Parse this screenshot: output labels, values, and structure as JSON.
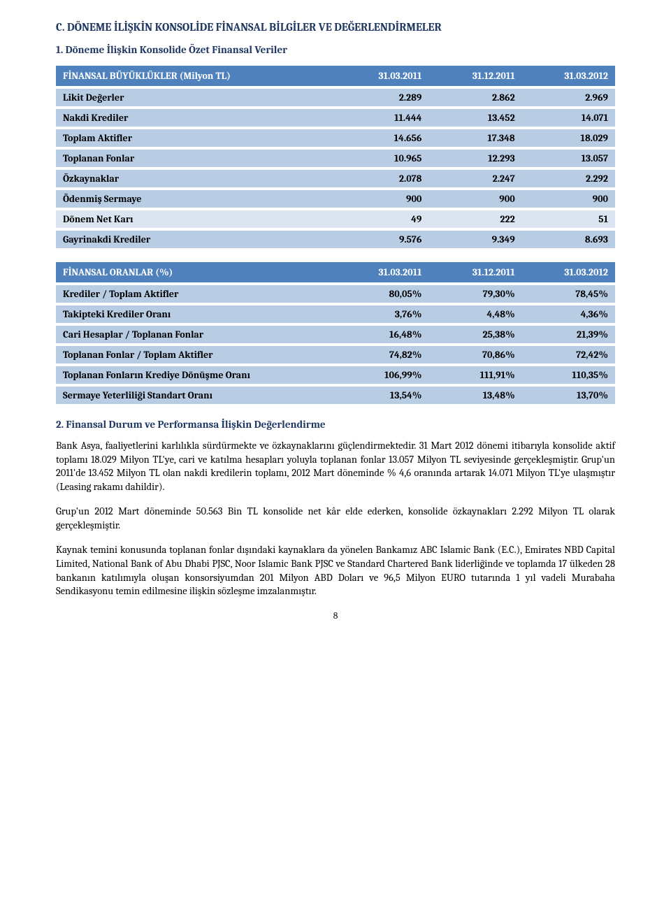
{
  "section_heading": "C.    DÖNEME İLİŞKİN KONSOLİDE FİNANSAL BİLGİLER VE DEĞERLENDİRMELER",
  "sub_heading": "1.    Döneme İlişkin Konsolide Özet Finansal Veriler",
  "table1": {
    "header_label": "FİNANSAL BÜYÜKLÜKLER (Milyon TL)",
    "col1": "31.03.2011",
    "col2": "31.12.2011",
    "col3": "31.03.2012",
    "rows": [
      {
        "label": "Likit Değerler",
        "v1": "2.289",
        "v2": "2.862",
        "v3": "2.969",
        "stripe": "medium"
      },
      {
        "label": "Nakdi Krediler",
        "v1": "11.444",
        "v2": "13.452",
        "v3": "14.071",
        "stripe": "medium"
      },
      {
        "label": "Toplam Aktifler",
        "v1": "14.656",
        "v2": "17.348",
        "v3": "18.029",
        "stripe": "medium"
      },
      {
        "label": "Toplanan Fonlar",
        "v1": "10.965",
        "v2": "12.293",
        "v3": "13.057",
        "stripe": "medium"
      },
      {
        "label": "Özkaynaklar",
        "v1": "2.078",
        "v2": "2.247",
        "v3": "2.292",
        "stripe": "medium"
      },
      {
        "label": "Ödenmiş Sermaye",
        "v1": "900",
        "v2": "900",
        "v3": "900",
        "stripe": "medium"
      },
      {
        "label": "Dönem Net Karı",
        "v1": "49",
        "v2": "222",
        "v3": "51",
        "stripe": "light"
      },
      {
        "label": "Gayrinakdi Krediler",
        "v1": "9.576",
        "v2": "9.349",
        "v3": "8.693",
        "stripe": "medium"
      }
    ]
  },
  "table2": {
    "header_label": "FİNANSAL ORANLAR (%)",
    "col1": "31.03.2011",
    "col2": "31.12.2011",
    "col3": "31.03.2012",
    "rows": [
      {
        "label": "Krediler / Toplam Aktifler",
        "v1": "80,05%",
        "v2": "79,30%",
        "v3": "78,45%",
        "stripe": "medium"
      },
      {
        "label": "Takipteki Krediler Oranı",
        "v1": "3,76%",
        "v2": "4,48%",
        "v3": "4,36%",
        "stripe": "medium"
      },
      {
        "label": "Cari Hesaplar / Toplanan Fonlar",
        "v1": "16,48%",
        "v2": "25,38%",
        "v3": "21,39%",
        "stripe": "medium"
      },
      {
        "label": "Toplanan Fonlar / Toplam Aktifler",
        "v1": "74,82%",
        "v2": "70,86%",
        "v3": "72,42%",
        "stripe": "medium"
      },
      {
        "label": "Toplanan Fonların Krediye Dönüşme Oranı",
        "v1": "106,99%",
        "v2": "111,91%",
        "v3": "110,35%",
        "stripe": "medium"
      },
      {
        "label": "Sermaye Yeterliliği Standart Oranı",
        "v1": "13,54%",
        "v2": "13,48%",
        "v3": "13,70%",
        "stripe": "medium"
      }
    ]
  },
  "numbered_heading_2": "2.    Finansal Durum ve Performansa İlişkin Değerlendirme",
  "para1": "Bank Asya, faaliyetlerini karlılıkla sürdürmekte ve özkaynaklarını güçlendirmektedir. 31 Mart 2012 dönemi itibarıyla konsolide aktif toplamı 18.029 Milyon TL'ye, cari ve katılma hesapları yoluyla toplanan fonlar 13.057 Milyon TL seviyesinde gerçekleşmiştir. Grup'un 2011'de 13.452 Milyon TL olan nakdi kredilerin toplamı, 2012 Mart döneminde % 4,6 oranında artarak 14.071 Milyon TL'ye ulaşmıştır (Leasing rakamı dahildir).",
  "para2": "Grup'un 2012 Mart döneminde 50.563 Bin TL konsolide net kâr elde ederken, konsolide özkaynakları 2.292 Milyon TL olarak gerçekleşmiştir.",
  "para3": "Kaynak temini konusunda toplanan fonlar dışındaki kaynaklara da yönelen Bankamız ABC Islamic Bank (E.C.), Emirates NBD Capital Limited, National Bank of Abu Dhabi PJSC, Noor Islamic Bank PJSC ve Standard Chartered Bank liderliğinde ve toplamda 17 ülkeden 28 bankanın katılımıyla oluşan konsorsiyumdan 201 Milyon ABD Doları ve 96,5 Milyon EURO tutarında 1 yıl vadeli Murabaha Sendikasyonu temin edilmesine ilişkin sözleşme imzalanmıştır.",
  "page_num": "8",
  "colors": {
    "header_bg": "#4f81bd",
    "header_text": "#ffffff",
    "stripe_medium": "#b8cce4",
    "stripe_light": "#dbe5f1",
    "heading_color": "#1f3864"
  }
}
